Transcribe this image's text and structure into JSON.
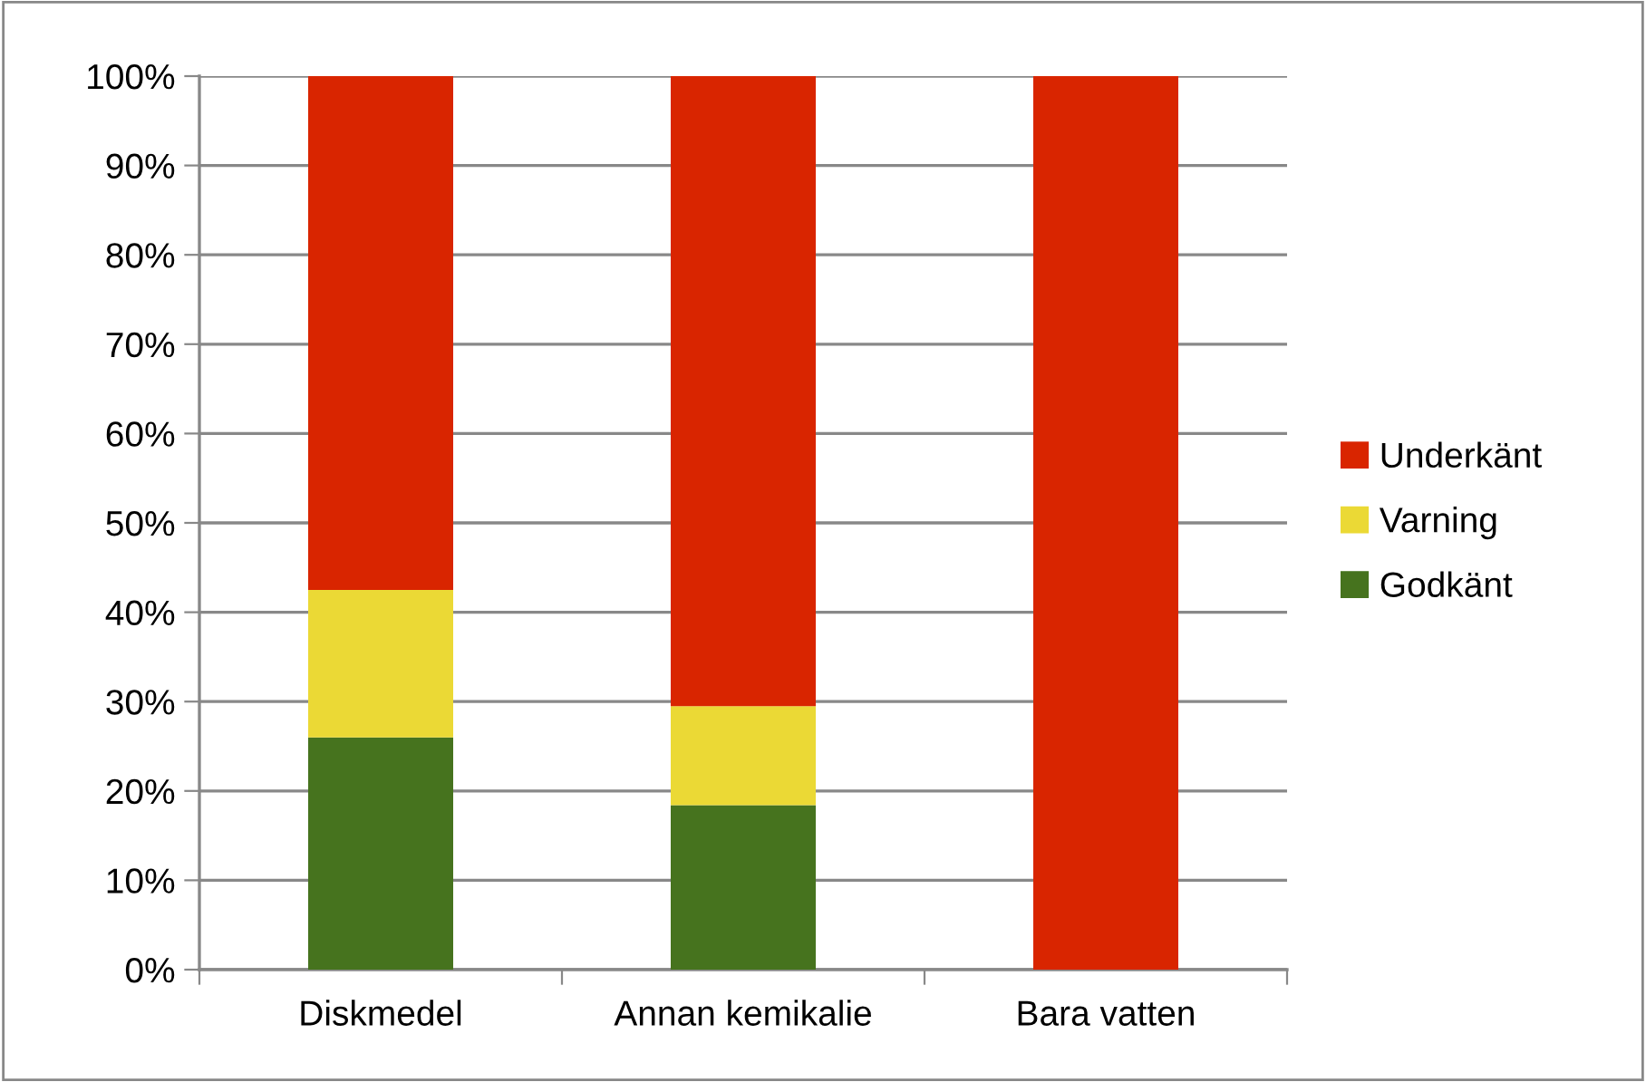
{
  "chart_data": {
    "type": "bar",
    "stacked": true,
    "categories": [
      "Diskmedel",
      "Annan kemikalie",
      "Bara vatten"
    ],
    "series": [
      {
        "name": "Godkänt",
        "color": "#46731e",
        "values": [
          26,
          18.4,
          0
        ]
      },
      {
        "name": "Varning",
        "color": "#ebd935",
        "values": [
          16.5,
          11.1,
          0
        ]
      },
      {
        "name": "Underkänt",
        "color": "#d92500",
        "values": [
          57.5,
          70.5,
          100
        ]
      }
    ],
    "ylim": [
      0,
      100
    ],
    "yticks": [
      {
        "value": 0,
        "label": "0%"
      },
      {
        "value": 10,
        "label": "10%"
      },
      {
        "value": 20,
        "label": "20%"
      },
      {
        "value": 30,
        "label": "30%"
      },
      {
        "value": 40,
        "label": "40%"
      },
      {
        "value": 50,
        "label": "50%"
      },
      {
        "value": 60,
        "label": "60%"
      },
      {
        "value": 70,
        "label": "70%"
      },
      {
        "value": 80,
        "label": "80%"
      },
      {
        "value": 90,
        "label": "90%"
      },
      {
        "value": 100,
        "label": "100%"
      }
    ],
    "grid": "y",
    "legend": "right"
  }
}
